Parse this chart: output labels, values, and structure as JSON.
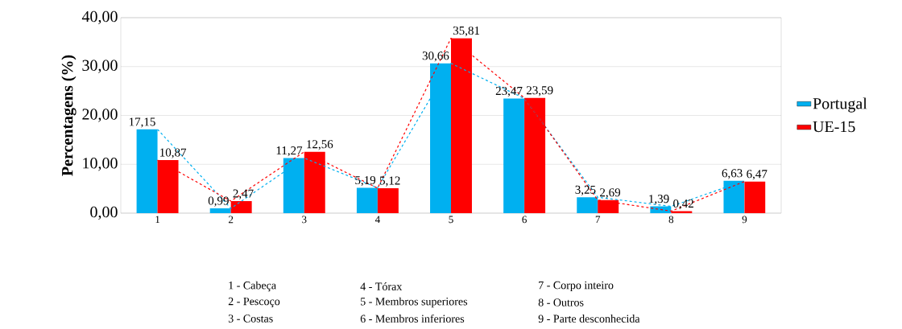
{
  "chart_data": {
    "type": "bar",
    "ylabel": "Percentagens (%)",
    "categories": [
      "1",
      "2",
      "3",
      "4",
      "5",
      "6",
      "7",
      "8",
      "9"
    ],
    "ylim": [
      0,
      40
    ],
    "yticks": [
      {
        "value": 0,
        "label": "0,00"
      },
      {
        "value": 10,
        "label": "10,00"
      },
      {
        "value": 20,
        "label": "20,00"
      },
      {
        "value": 30,
        "label": "30,00"
      },
      {
        "value": 40,
        "label": "40,00"
      }
    ],
    "grid": "y",
    "legend": "right",
    "series": [
      {
        "name": "Portugal",
        "color": "#00b0f0",
        "values": [
          17.15,
          0.99,
          11.27,
          5.19,
          30.66,
          23.47,
          3.25,
          1.39,
          6.63
        ],
        "value_labels": [
          "17,15",
          "0,99",
          "11,27",
          "5,19",
          "30,66",
          "23,47",
          "3,25",
          "1,39",
          "6,63"
        ]
      },
      {
        "name": "UE-15",
        "color": "#ff0000",
        "values": [
          10.87,
          2.47,
          12.56,
          5.12,
          35.81,
          23.59,
          2.69,
          0.42,
          6.47
        ],
        "value_labels": [
          "10,87",
          "2,47",
          "12,56",
          "5,12",
          "35,81",
          "23,59",
          "2,69",
          "0,42",
          "6,47"
        ]
      },
      {
        "type": "line",
        "color": "#00b0f0",
        "line_style": "dashed",
        "values": [
          17.15,
          0.99,
          11.27,
          5.19,
          30.66,
          23.47,
          3.25,
          1.39,
          6.63
        ]
      },
      {
        "type": "line",
        "color": "#ff0000",
        "line_style": "dashed",
        "values": [
          10.87,
          2.47,
          12.56,
          5.12,
          35.81,
          23.59,
          2.69,
          0.42,
          6.47
        ]
      }
    ],
    "annotations": [
      "1 - Cabeça",
      "2 - Pescoço",
      "3 - Costas",
      "4 - Tórax",
      "5 - Membros superiores",
      "6 - Membros inferiores",
      "7 - Corpo inteiro",
      "8 - Outros",
      "9 - Parte desconhecida"
    ]
  }
}
